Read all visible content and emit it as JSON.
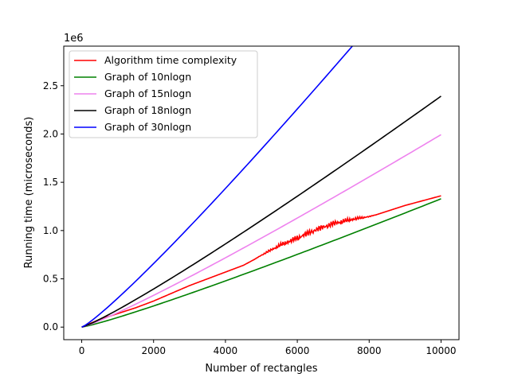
{
  "chart_data": {
    "type": "line",
    "xlabel": "Number of rectangles",
    "ylabel": "Running time (microseconds)",
    "y_offset_label": "1e6",
    "xlim": [
      -500,
      10500
    ],
    "ylim": [
      -0.13,
      2.91
    ],
    "x_ticks": [
      0,
      2000,
      4000,
      6000,
      8000,
      10000
    ],
    "x_tick_labels": [
      "0",
      "2000",
      "4000",
      "6000",
      "8000",
      "10000"
    ],
    "y_ticks": [
      0.0,
      0.5,
      1.0,
      1.5,
      2.0,
      2.5
    ],
    "y_tick_labels": [
      "0.0",
      "0.5",
      "1.0",
      "1.5",
      "2.0",
      "2.5"
    ],
    "grid": false,
    "legend_position": "top-left",
    "series": [
      {
        "name": "Algorithm time complexity",
        "color": "#ff0000",
        "x": [
          0,
          500,
          1000,
          1500,
          2000,
          2500,
          3000,
          3500,
          4000,
          4500,
          5000,
          5500,
          6000,
          6500,
          7000,
          7500,
          8000,
          8500,
          9000,
          9500,
          10000
        ],
        "y": [
          0.0,
          0.08,
          0.14,
          0.2,
          0.27,
          0.35,
          0.43,
          0.5,
          0.57,
          0.64,
          0.74,
          0.83,
          0.9,
          0.98,
          1.05,
          1.1,
          1.14,
          1.2,
          1.26,
          1.31,
          1.36
        ]
      },
      {
        "name": "Graph of 10nlogn",
        "color": "#008000",
        "multiplier": 10
      },
      {
        "name": "Graph of 15nlogn",
        "color": "#ee82ee",
        "multiplier": 15
      },
      {
        "name": "Graph of 18nlogn",
        "color": "#000000",
        "multiplier": 18
      },
      {
        "name": "Graph of 30nlogn",
        "color": "#0000ff",
        "multiplier": 30
      }
    ]
  }
}
